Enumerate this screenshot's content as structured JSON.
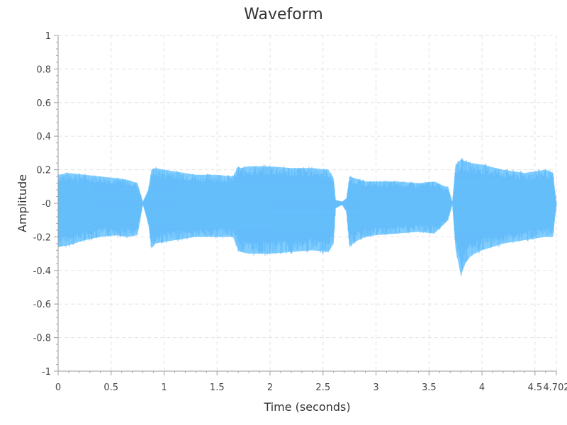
{
  "chart_data": {
    "type": "area",
    "title": "Waveform",
    "xlabel": "Time (seconds)",
    "ylabel": "Amplitude",
    "xlim": [
      0,
      4.702
    ],
    "ylim": [
      -1,
      1
    ],
    "x_ticks": [
      0,
      0.5,
      1,
      1.5,
      2,
      2.5,
      3,
      3.5,
      4,
      4.5,
      4.702
    ],
    "x_tick_labels": [
      "0",
      "0.5",
      "1",
      "1.5",
      "2",
      "2.5",
      "3",
      "3.5",
      "4",
      "4.5",
      "4.702"
    ],
    "y_ticks": [
      1,
      0.8,
      0.6,
      0.4,
      0.2,
      0,
      -0.2,
      -0.4,
      -0.6,
      -0.8,
      -1
    ],
    "y_tick_labels": [
      "1",
      "0.8",
      "0.6",
      "0.4",
      "0.2",
      "-0",
      "-0.2",
      "-0.4",
      "-0.6",
      "-0.8",
      "-1"
    ],
    "grid": true,
    "color": "#6bc4ff",
    "series": [
      {
        "x": [
          0,
          0.1,
          0.25,
          0.4,
          0.55,
          0.65,
          0.75,
          0.8,
          0.85,
          0.88,
          0.92,
          1.0,
          1.1,
          1.3,
          1.5,
          1.65,
          1.7,
          1.72,
          1.8,
          2.0,
          2.2,
          2.4,
          2.55,
          2.6,
          2.62,
          2.68,
          2.72,
          2.75,
          2.8,
          2.9,
          3.0,
          3.2,
          3.4,
          3.55,
          3.65,
          3.68,
          3.72,
          3.75,
          3.8,
          3.85,
          3.9,
          4.0,
          4.2,
          4.4,
          4.6,
          4.67,
          4.702
        ],
        "upper": [
          0.17,
          0.18,
          0.17,
          0.16,
          0.15,
          0.14,
          0.12,
          0.01,
          0.08,
          0.2,
          0.21,
          0.2,
          0.19,
          0.17,
          0.17,
          0.16,
          0.22,
          0.21,
          0.22,
          0.22,
          0.21,
          0.21,
          0.2,
          0.15,
          0.02,
          0.01,
          0.03,
          0.16,
          0.15,
          0.13,
          0.13,
          0.13,
          0.12,
          0.13,
          0.1,
          0.1,
          0.01,
          0.23,
          0.26,
          0.25,
          0.24,
          0.23,
          0.2,
          0.18,
          0.2,
          0.18,
          0.01
        ],
        "lower": [
          -0.26,
          -0.25,
          -0.22,
          -0.2,
          -0.19,
          -0.2,
          -0.19,
          -0.01,
          -0.12,
          -0.27,
          -0.24,
          -0.23,
          -0.22,
          -0.2,
          -0.2,
          -0.2,
          -0.28,
          -0.29,
          -0.3,
          -0.3,
          -0.29,
          -0.28,
          -0.29,
          -0.24,
          -0.03,
          -0.01,
          -0.05,
          -0.26,
          -0.23,
          -0.2,
          -0.19,
          -0.18,
          -0.17,
          -0.18,
          -0.12,
          -0.1,
          -0.01,
          -0.27,
          -0.43,
          -0.35,
          -0.31,
          -0.28,
          -0.24,
          -0.22,
          -0.2,
          -0.2,
          -0.02
        ]
      }
    ]
  }
}
